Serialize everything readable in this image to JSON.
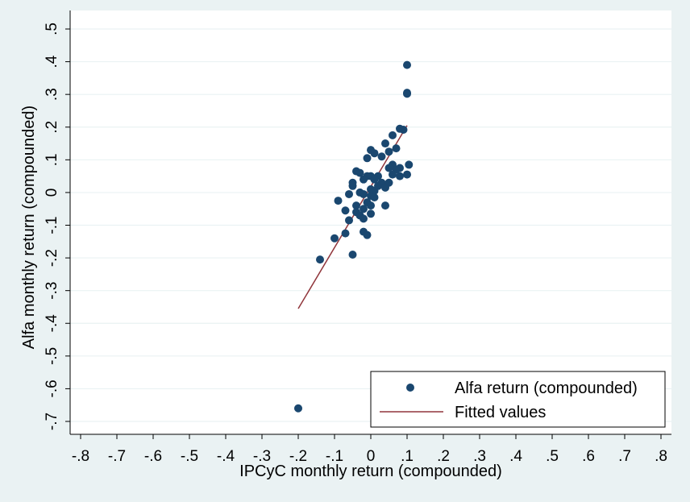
{
  "chart_data": {
    "type": "scatter",
    "xlabel": "IPCyC monthly return (compounded)",
    "ylabel": "Alfa monthly return (compounded)",
    "xlim": [
      -0.8,
      0.8
    ],
    "ylim": [
      -0.7,
      0.5
    ],
    "x_ticks": [
      -0.8,
      -0.7,
      -0.6,
      -0.5,
      -0.4,
      -0.3,
      -0.2,
      -0.1,
      0,
      0.1,
      0.2,
      0.3,
      0.4,
      0.5,
      0.6,
      0.7,
      0.8
    ],
    "x_tick_labels": [
      "-.8",
      "-.7",
      "-.6",
      "-.5",
      "-.4",
      "-.3",
      "-.2",
      "-.1",
      "0",
      ".1",
      ".2",
      ".3",
      ".4",
      ".5",
      ".6",
      ".7",
      ".8"
    ],
    "y_ticks": [
      -0.7,
      -0.6,
      -0.5,
      -0.4,
      -0.3,
      -0.2,
      -0.1,
      0,
      0.1,
      0.2,
      0.3,
      0.4,
      0.5
    ],
    "y_tick_labels": [
      "-.7",
      "-.6",
      "-.5",
      "-.4",
      "-.3",
      "-.2",
      "-.1",
      "0",
      ".1",
      ".2",
      ".3",
      ".4",
      ".5"
    ],
    "grid": true,
    "legend_position": "bottom-right",
    "legend": [
      "Alfa return (compounded)",
      "Fitted values"
    ],
    "colors": {
      "points": "#1a476f",
      "fit": "#90353b",
      "plot_bg": "#ffffff",
      "page_bg": "#eaf2f3",
      "grid": "#eaf2f3"
    },
    "series": [
      {
        "name": "Alfa return (compounded)",
        "type": "scatter",
        "points": [
          [
            0.1,
            0.39
          ],
          [
            0.1,
            0.305
          ],
          [
            0.1,
            0.302
          ],
          [
            0.08,
            0.195
          ],
          [
            0.09,
            0.192
          ],
          [
            0.06,
            0.175
          ],
          [
            0.07,
            0.135
          ],
          [
            0.04,
            0.15
          ],
          [
            0.05,
            0.125
          ],
          [
            0.0,
            0.13
          ],
          [
            0.01,
            0.12
          ],
          [
            -0.01,
            0.105
          ],
          [
            0.03,
            0.11
          ],
          [
            0.105,
            0.085
          ],
          [
            0.06,
            0.085
          ],
          [
            0.05,
            0.075
          ],
          [
            0.08,
            0.075
          ],
          [
            0.07,
            0.07
          ],
          [
            -0.04,
            0.065
          ],
          [
            -0.03,
            0.06
          ],
          [
            0.02,
            0.05
          ],
          [
            0.0,
            0.05
          ],
          [
            -0.01,
            0.05
          ],
          [
            0.06,
            0.055
          ],
          [
            0.08,
            0.05
          ],
          [
            0.1,
            0.055
          ],
          [
            0.01,
            0.04
          ],
          [
            -0.02,
            0.04
          ],
          [
            0.05,
            0.03
          ],
          [
            0.03,
            0.03
          ],
          [
            -0.05,
            0.03
          ],
          [
            -0.05,
            0.02
          ],
          [
            0.02,
            0.02
          ],
          [
            0.04,
            0.015
          ],
          [
            0.0,
            0.01
          ],
          [
            0.01,
            0.005
          ],
          [
            -0.03,
            0.0
          ],
          [
            -0.02,
            -0.005
          ],
          [
            0.0,
            -0.01
          ],
          [
            0.01,
            -0.015
          ],
          [
            -0.06,
            -0.005
          ],
          [
            -0.09,
            -0.025
          ],
          [
            -0.01,
            -0.03
          ],
          [
            -0.04,
            -0.04
          ],
          [
            0.0,
            -0.04
          ],
          [
            -0.02,
            -0.05
          ],
          [
            0.04,
            -0.04
          ],
          [
            -0.04,
            -0.06
          ],
          [
            0.0,
            -0.065
          ],
          [
            -0.07,
            -0.055
          ],
          [
            -0.03,
            -0.07
          ],
          [
            -0.02,
            -0.08
          ],
          [
            -0.06,
            -0.085
          ],
          [
            -0.02,
            -0.12
          ],
          [
            -0.01,
            -0.13
          ],
          [
            -0.07,
            -0.125
          ],
          [
            -0.1,
            -0.14
          ],
          [
            -0.05,
            -0.19
          ],
          [
            -0.14,
            -0.205
          ],
          [
            -0.2,
            -0.66
          ]
        ]
      },
      {
        "name": "Fitted values",
        "type": "line",
        "points": [
          [
            -0.2,
            -0.355
          ],
          [
            0.1,
            0.205
          ]
        ]
      }
    ]
  }
}
